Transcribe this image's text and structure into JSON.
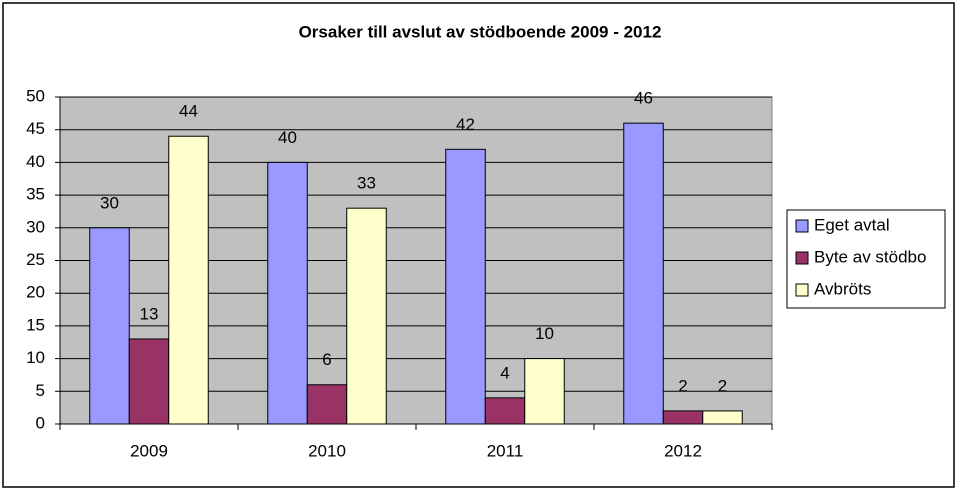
{
  "chart_data": {
    "type": "bar",
    "title": "Orsaker till avslut av stödboende 2009 - 2012",
    "categories": [
      "2009",
      "2010",
      "2011",
      "2012"
    ],
    "series": [
      {
        "name": "Eget avtal",
        "color": "#9999ff",
        "values": [
          30,
          40,
          42,
          46
        ]
      },
      {
        "name": "Byte av stödbo",
        "color": "#993366",
        "values": [
          13,
          6,
          4,
          2
        ]
      },
      {
        "name": "Avbröts",
        "color": "#ffffcc",
        "values": [
          44,
          33,
          10,
          2
        ]
      }
    ],
    "ylim": [
      0,
      50
    ],
    "yticks": [
      0,
      5,
      10,
      15,
      20,
      25,
      30,
      35,
      40,
      45,
      50
    ],
    "grid": true,
    "plot_background": "#c0c0c0",
    "legend": "right"
  }
}
